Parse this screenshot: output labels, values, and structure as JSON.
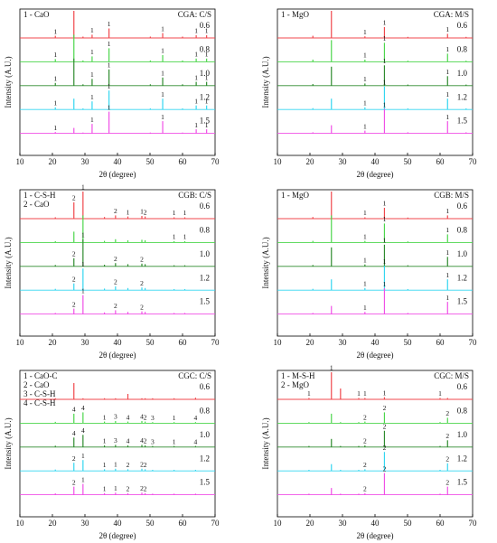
{
  "chart_data": [
    {
      "type": "xrd",
      "title": "CGA: C/S",
      "legend": [
        "1 - CaO"
      ],
      "xlabel": "2θ (degree)",
      "ylabel": "Intensity (A.U.)",
      "xlim": [
        10,
        70
      ],
      "xticks": [
        10,
        20,
        30,
        40,
        50,
        60,
        70
      ],
      "x": [
        20.9,
        26.6,
        29.4,
        32.2,
        37.4,
        50.1,
        53.9,
        60,
        64.2,
        67.4
      ],
      "series": [
        {
          "name": "0.6",
          "color": "#f0474c",
          "values": [
            8,
            100,
            5,
            12,
            35,
            5,
            18,
            5,
            10,
            10
          ],
          "labels": [
            "1",
            null,
            null,
            "1",
            "1",
            null,
            "1",
            null,
            "1",
            "1"
          ]
        },
        {
          "name": "0.8",
          "color": "#4cd64c",
          "values": [
            10,
            100,
            5,
            20,
            50,
            5,
            25,
            5,
            12,
            12
          ],
          "labels": [
            "1",
            null,
            null,
            "1",
            "1",
            null,
            "1",
            null,
            "1",
            "1"
          ]
        },
        {
          "name": "1.0",
          "color": "#2e8b2e",
          "values": [
            10,
            100,
            5,
            25,
            60,
            5,
            30,
            5,
            14,
            14
          ],
          "labels": [
            "1",
            null,
            null,
            "1",
            "1",
            null,
            "1",
            null,
            "1",
            "1"
          ]
        },
        {
          "name": "1.2",
          "color": "#33d6f0",
          "values": [
            8,
            40,
            4,
            30,
            70,
            4,
            40,
            4,
            15,
            15
          ],
          "labels": [
            "1",
            null,
            null,
            "1",
            "1",
            null,
            "1",
            null,
            "1",
            "1"
          ]
        },
        {
          "name": "1.5",
          "color": "#f050e6",
          "values": [
            5,
            20,
            3,
            35,
            80,
            3,
            45,
            3,
            15,
            15
          ],
          "labels": [
            "1",
            null,
            null,
            "1",
            "1",
            null,
            "1",
            null,
            "1",
            "1"
          ]
        }
      ]
    },
    {
      "type": "xrd",
      "title": "CGA: M/S",
      "legend": [
        "1 - MgO"
      ],
      "xlabel": "2θ (degree)",
      "ylabel": "Intensity (A.U.)",
      "xlim": [
        10,
        70
      ],
      "xticks": [
        10,
        20,
        30,
        40,
        50,
        60,
        70
      ],
      "x": [
        20.9,
        26.6,
        36.9,
        42.9,
        50.1,
        62.3,
        68
      ],
      "series": [
        {
          "name": "0.6",
          "color": "#f0474c",
          "values": [
            8,
            100,
            6,
            40,
            4,
            15,
            4
          ],
          "labels": [
            null,
            null,
            "1",
            "1",
            null,
            "1",
            null
          ]
        },
        {
          "name": "0.8",
          "color": "#4cd64c",
          "values": [
            8,
            80,
            8,
            70,
            4,
            30,
            4
          ],
          "labels": [
            null,
            null,
            "1",
            "1",
            null,
            "1",
            null
          ]
        },
        {
          "name": "1.0",
          "color": "#2e8b2e",
          "values": [
            6,
            70,
            8,
            75,
            4,
            35,
            4
          ],
          "labels": [
            null,
            null,
            "1",
            "1",
            null,
            "1",
            null
          ]
        },
        {
          "name": "1.2",
          "color": "#33d6f0",
          "values": [
            5,
            40,
            8,
            85,
            4,
            40,
            4
          ],
          "labels": [
            null,
            null,
            "1",
            "1",
            null,
            "1",
            null
          ]
        },
        {
          "name": "1.5",
          "color": "#f050e6",
          "values": [
            4,
            30,
            10,
            90,
            4,
            45,
            4
          ],
          "labels": [
            null,
            null,
            "1",
            "1",
            null,
            "1",
            null
          ]
        }
      ]
    },
    {
      "type": "xrd",
      "title": "CGB: C/S",
      "legend": [
        "1 - C-S-H",
        "2 - CaO"
      ],
      "xlabel": "2θ (degree)",
      "ylabel": "Intensity (A.U.)",
      "xlim": [
        10,
        70
      ],
      "xticks": [
        10,
        20,
        30,
        40,
        50,
        60,
        70
      ],
      "x": [
        20.9,
        26.6,
        29.4,
        36,
        39.4,
        43.2,
        47.5,
        48.5,
        57.4,
        60.7
      ],
      "series": [
        {
          "name": "0.6",
          "color": "#f0474c",
          "values": [
            5,
            60,
            100,
            6,
            12,
            8,
            10,
            8,
            5,
            5
          ],
          "labels": [
            null,
            "2",
            "1",
            null,
            "2",
            "1",
            "1",
            "2",
            "1",
            "1"
          ]
        },
        {
          "name": "0.8",
          "color": "#4cd64c",
          "values": [
            5,
            40,
            100,
            6,
            12,
            8,
            10,
            8,
            5,
            5
          ],
          "labels": [
            null,
            null,
            null,
            null,
            null,
            null,
            null,
            null,
            "1",
            "1"
          ]
        },
        {
          "name": "1.0",
          "color": "#2e8b2e",
          "values": [
            5,
            30,
            100,
            6,
            12,
            8,
            10,
            8,
            4,
            4
          ],
          "labels": [
            null,
            "2",
            "1",
            null,
            "2",
            null,
            "2",
            null,
            null,
            null
          ]
        },
        {
          "name": "1.2",
          "color": "#33d6f0",
          "values": [
            5,
            25,
            80,
            6,
            14,
            8,
            10,
            8,
            4,
            4
          ],
          "labels": [
            null,
            "2",
            "1",
            null,
            "2",
            null,
            "2",
            null,
            null,
            null
          ]
        },
        {
          "name": "1.5",
          "color": "#f050e6",
          "values": [
            4,
            20,
            70,
            6,
            14,
            8,
            10,
            8,
            4,
            4
          ],
          "labels": [
            null,
            "2",
            "1",
            null,
            "2",
            null,
            "2",
            null,
            null,
            null
          ]
        }
      ]
    },
    {
      "type": "xrd",
      "title": "CGB: M/S",
      "legend": [
        "1 - MgO"
      ],
      "xlabel": "2θ (degree)",
      "ylabel": "Intensity (A.U.)",
      "xlim": [
        10,
        70
      ],
      "xticks": [
        10,
        20,
        30,
        40,
        50,
        60,
        70
      ],
      "x": [
        20.9,
        26.6,
        36.9,
        42.9,
        50.1,
        62.3
      ],
      "series": [
        {
          "name": "0.6",
          "color": "#f0474c",
          "values": [
            6,
            100,
            5,
            40,
            4,
            12
          ],
          "labels": [
            null,
            null,
            "1",
            "1",
            null,
            "1"
          ]
        },
        {
          "name": "0.8",
          "color": "#4cd64c",
          "values": [
            6,
            100,
            6,
            70,
            4,
            30
          ],
          "labels": [
            null,
            null,
            "1",
            "1",
            null,
            "1"
          ]
        },
        {
          "name": "1.0",
          "color": "#2e8b2e",
          "values": [
            5,
            70,
            7,
            80,
            4,
            35
          ],
          "labels": [
            null,
            null,
            "1",
            "1",
            null,
            "1"
          ]
        },
        {
          "name": "1.2",
          "color": "#33d6f0",
          "values": [
            5,
            40,
            8,
            90,
            4,
            40
          ],
          "labels": [
            null,
            null,
            "1",
            "1",
            null,
            "1"
          ]
        },
        {
          "name": "1.5",
          "color": "#f050e6",
          "values": [
            4,
            30,
            8,
            95,
            4,
            45
          ],
          "labels": [
            null,
            null,
            "1",
            "1",
            null,
            "1"
          ]
        }
      ]
    },
    {
      "type": "xrd",
      "title": "CGC: C/S",
      "legend": [
        "1 - CaO-C",
        "2 - CaO",
        "3 - C-S-H",
        "4 - C-S-H"
      ],
      "xlabel": "2θ (degree)",
      "ylabel": "Intensity (A.U.)",
      "xlim": [
        10,
        70
      ],
      "xticks": [
        10,
        20,
        30,
        40,
        50,
        60,
        70
      ],
      "x": [
        20.9,
        26.6,
        29.4,
        36,
        39.4,
        43.2,
        47.5,
        48.5,
        50.8,
        57.4,
        64
      ],
      "series": [
        {
          "name": "0.6",
          "color": "#f0474c",
          "values": [
            4,
            60,
            4,
            4,
            4,
            20,
            4,
            4,
            4,
            4,
            6
          ],
          "labels": [
            null,
            null,
            null,
            null,
            null,
            null,
            null,
            null,
            null,
            null,
            null
          ]
        },
        {
          "name": "0.8",
          "color": "#4cd64c",
          "values": [
            5,
            35,
            40,
            6,
            8,
            6,
            8,
            6,
            4,
            4,
            4
          ],
          "labels": [
            null,
            "4",
            "4",
            "1",
            "3",
            "4",
            "4",
            "2",
            "3",
            "1",
            "4"
          ]
        },
        {
          "name": "1.0",
          "color": "#2e8b2e",
          "values": [
            5,
            35,
            45,
            6,
            8,
            6,
            8,
            6,
            4,
            4,
            4
          ],
          "labels": [
            null,
            "4",
            "4",
            "1",
            "3",
            "4",
            "4",
            "2",
            "3",
            "1",
            "4"
          ]
        },
        {
          "name": "1.2",
          "color": "#33d6f0",
          "values": [
            5,
            30,
            40,
            6,
            8,
            6,
            8,
            6,
            4,
            4,
            4
          ],
          "labels": [
            null,
            "2",
            "1",
            "1",
            "1",
            "2",
            "2",
            "2",
            null,
            null,
            null
          ]
        },
        {
          "name": "1.5",
          "color": "#f050e6",
          "values": [
            5,
            30,
            40,
            6,
            8,
            6,
            8,
            6,
            4,
            4,
            4
          ],
          "labels": [
            null,
            "2",
            "1",
            "1",
            "1",
            "2",
            "2",
            "2",
            null,
            null,
            null
          ]
        }
      ]
    },
    {
      "type": "xrd",
      "title": "CGC: M/S",
      "legend": [
        "1 - M-S-H",
        "2 - MgO"
      ],
      "xlabel": "2θ (degree)",
      "ylabel": "Intensity (A.U.)",
      "xlim": [
        10,
        70
      ],
      "xticks": [
        10,
        20,
        30,
        40,
        50,
        60,
        70
      ],
      "x": [
        19.7,
        26.6,
        29.4,
        35,
        36.9,
        42.9,
        60,
        62.3
      ],
      "series": [
        {
          "name": "0.6",
          "color": "#f0474c",
          "values": [
            5,
            100,
            40,
            5,
            5,
            8,
            5,
            5
          ],
          "labels": [
            "1",
            "1",
            null,
            "1",
            "1",
            "1",
            "1",
            null
          ]
        },
        {
          "name": "0.8",
          "color": "#4cd64c",
          "values": [
            4,
            35,
            4,
            4,
            6,
            40,
            4,
            20
          ],
          "labels": [
            null,
            null,
            null,
            null,
            "2",
            "2",
            null,
            "2"
          ]
        },
        {
          "name": "1.0",
          "color": "#2e8b2e",
          "values": [
            4,
            30,
            4,
            4,
            6,
            60,
            4,
            25
          ],
          "labels": [
            null,
            null,
            null,
            null,
            "2",
            "2",
            null,
            "2"
          ]
        },
        {
          "name": "1.2",
          "color": "#33d6f0",
          "values": [
            4,
            25,
            4,
            4,
            6,
            70,
            4,
            28
          ],
          "labels": [
            null,
            null,
            null,
            null,
            "2",
            "2",
            null,
            "2"
          ]
        },
        {
          "name": "1.5",
          "color": "#f050e6",
          "values": [
            4,
            25,
            4,
            4,
            6,
            80,
            4,
            30
          ],
          "labels": [
            null,
            null,
            null,
            null,
            "2",
            "2",
            null,
            "2"
          ]
        }
      ]
    }
  ]
}
